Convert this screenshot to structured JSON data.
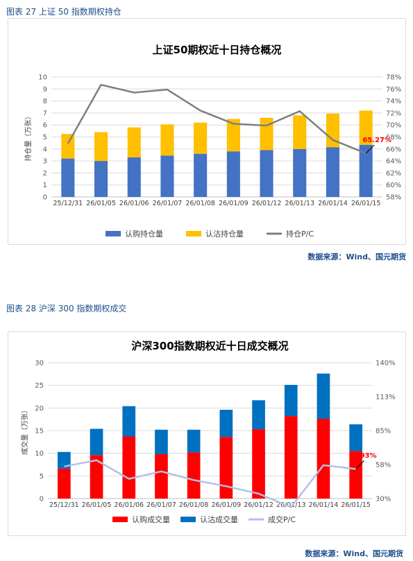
{
  "figures": [
    {
      "label": "图表 27 上证 50 指数期权持仓",
      "source": "数据来源：Wind、国元期货"
    },
    {
      "label": "图表 28 沪深 300 指数期权成交",
      "source": "数据来源：Wind、国元期货"
    }
  ],
  "chart_data": [
    {
      "type": "bar",
      "title": "上证50期权近十日持仓概况",
      "ylabel": "持仓量（万张）",
      "stacked": true,
      "categories": [
        "25/12/31",
        "26/01/05",
        "26/01/06",
        "26/01/07",
        "26/01/08",
        "26/01/09",
        "26/01/12",
        "26/01/13",
        "26/01/14",
        "26/01/15"
      ],
      "series": [
        {
          "name": "认购持仓量",
          "kind": "bar",
          "axis": "left",
          "color": "#4472c4",
          "values": [
            3.2,
            3.0,
            3.3,
            3.45,
            3.6,
            3.8,
            3.9,
            4.0,
            4.15,
            4.35
          ]
        },
        {
          "name": "认沽持仓量",
          "kind": "bar",
          "axis": "left",
          "color": "#ffc000",
          "values": [
            2.05,
            2.4,
            2.5,
            2.6,
            2.6,
            2.7,
            2.7,
            2.8,
            2.8,
            2.85
          ]
        },
        {
          "name": "持仓P/C",
          "kind": "line",
          "axis": "right",
          "color": "#7f7f7f",
          "values": [
            66.9,
            76.7,
            75.4,
            75.9,
            72.4,
            70.2,
            69.9,
            72.3,
            67.5,
            65.27
          ]
        }
      ],
      "ylim": [
        0,
        10
      ],
      "yticks": [
        "0",
        "1",
        "2",
        "3",
        "4",
        "5",
        "6",
        "7",
        "8",
        "9",
        "10"
      ],
      "y2lim": [
        58,
        78
      ],
      "y2ticks": [
        "58%",
        "60%",
        "62%",
        "64%",
        "66%",
        "68%",
        "70%",
        "72%",
        "74%",
        "76%",
        "78%"
      ],
      "annotation": {
        "text": "65.27%",
        "index": 9,
        "color": "#ff0000"
      },
      "legend_position": "bottom"
    },
    {
      "type": "bar",
      "title": "沪深300指数期权近十日成交概况",
      "ylabel": "成交量（万张）",
      "stacked": true,
      "categories": [
        "25/12/31",
        "26/01/05",
        "26/01/06",
        "26/01/07",
        "26/01/08",
        "26/01/09",
        "26/01/12",
        "26/01/13",
        "26/01/14",
        "26/01/15"
      ],
      "series": [
        {
          "name": "认购成交量",
          "kind": "bar",
          "axis": "left",
          "color": "#ff0000",
          "values": [
            6.6,
            9.6,
            13.7,
            9.8,
            10.2,
            13.6,
            15.3,
            18.2,
            17.6,
            10.5
          ]
        },
        {
          "name": "认沽成交量",
          "kind": "bar",
          "axis": "left",
          "color": "#0070c0",
          "values": [
            3.7,
            5.8,
            6.7,
            5.4,
            5.0,
            6.0,
            6.4,
            6.9,
            10.0,
            5.9
          ]
        },
        {
          "name": "成交P/C",
          "kind": "line",
          "axis": "right",
          "color": "#b4c0e4",
          "values": [
            56,
            61,
            46,
            52,
            45,
            40,
            34,
            23,
            57,
            54
          ]
        }
      ],
      "ylim": [
        0,
        30
      ],
      "yticks": [
        "0",
        "5",
        "10",
        "15",
        "20",
        "25",
        "30"
      ],
      "y2lim": [
        30,
        140
      ],
      "y2ticks": [
        "30%",
        "58%",
        "85%",
        "113%",
        "140%"
      ],
      "annotation": {
        "text": ".93%",
        "index": 9,
        "color": "#ff0000"
      },
      "legend_position": "bottom"
    }
  ]
}
